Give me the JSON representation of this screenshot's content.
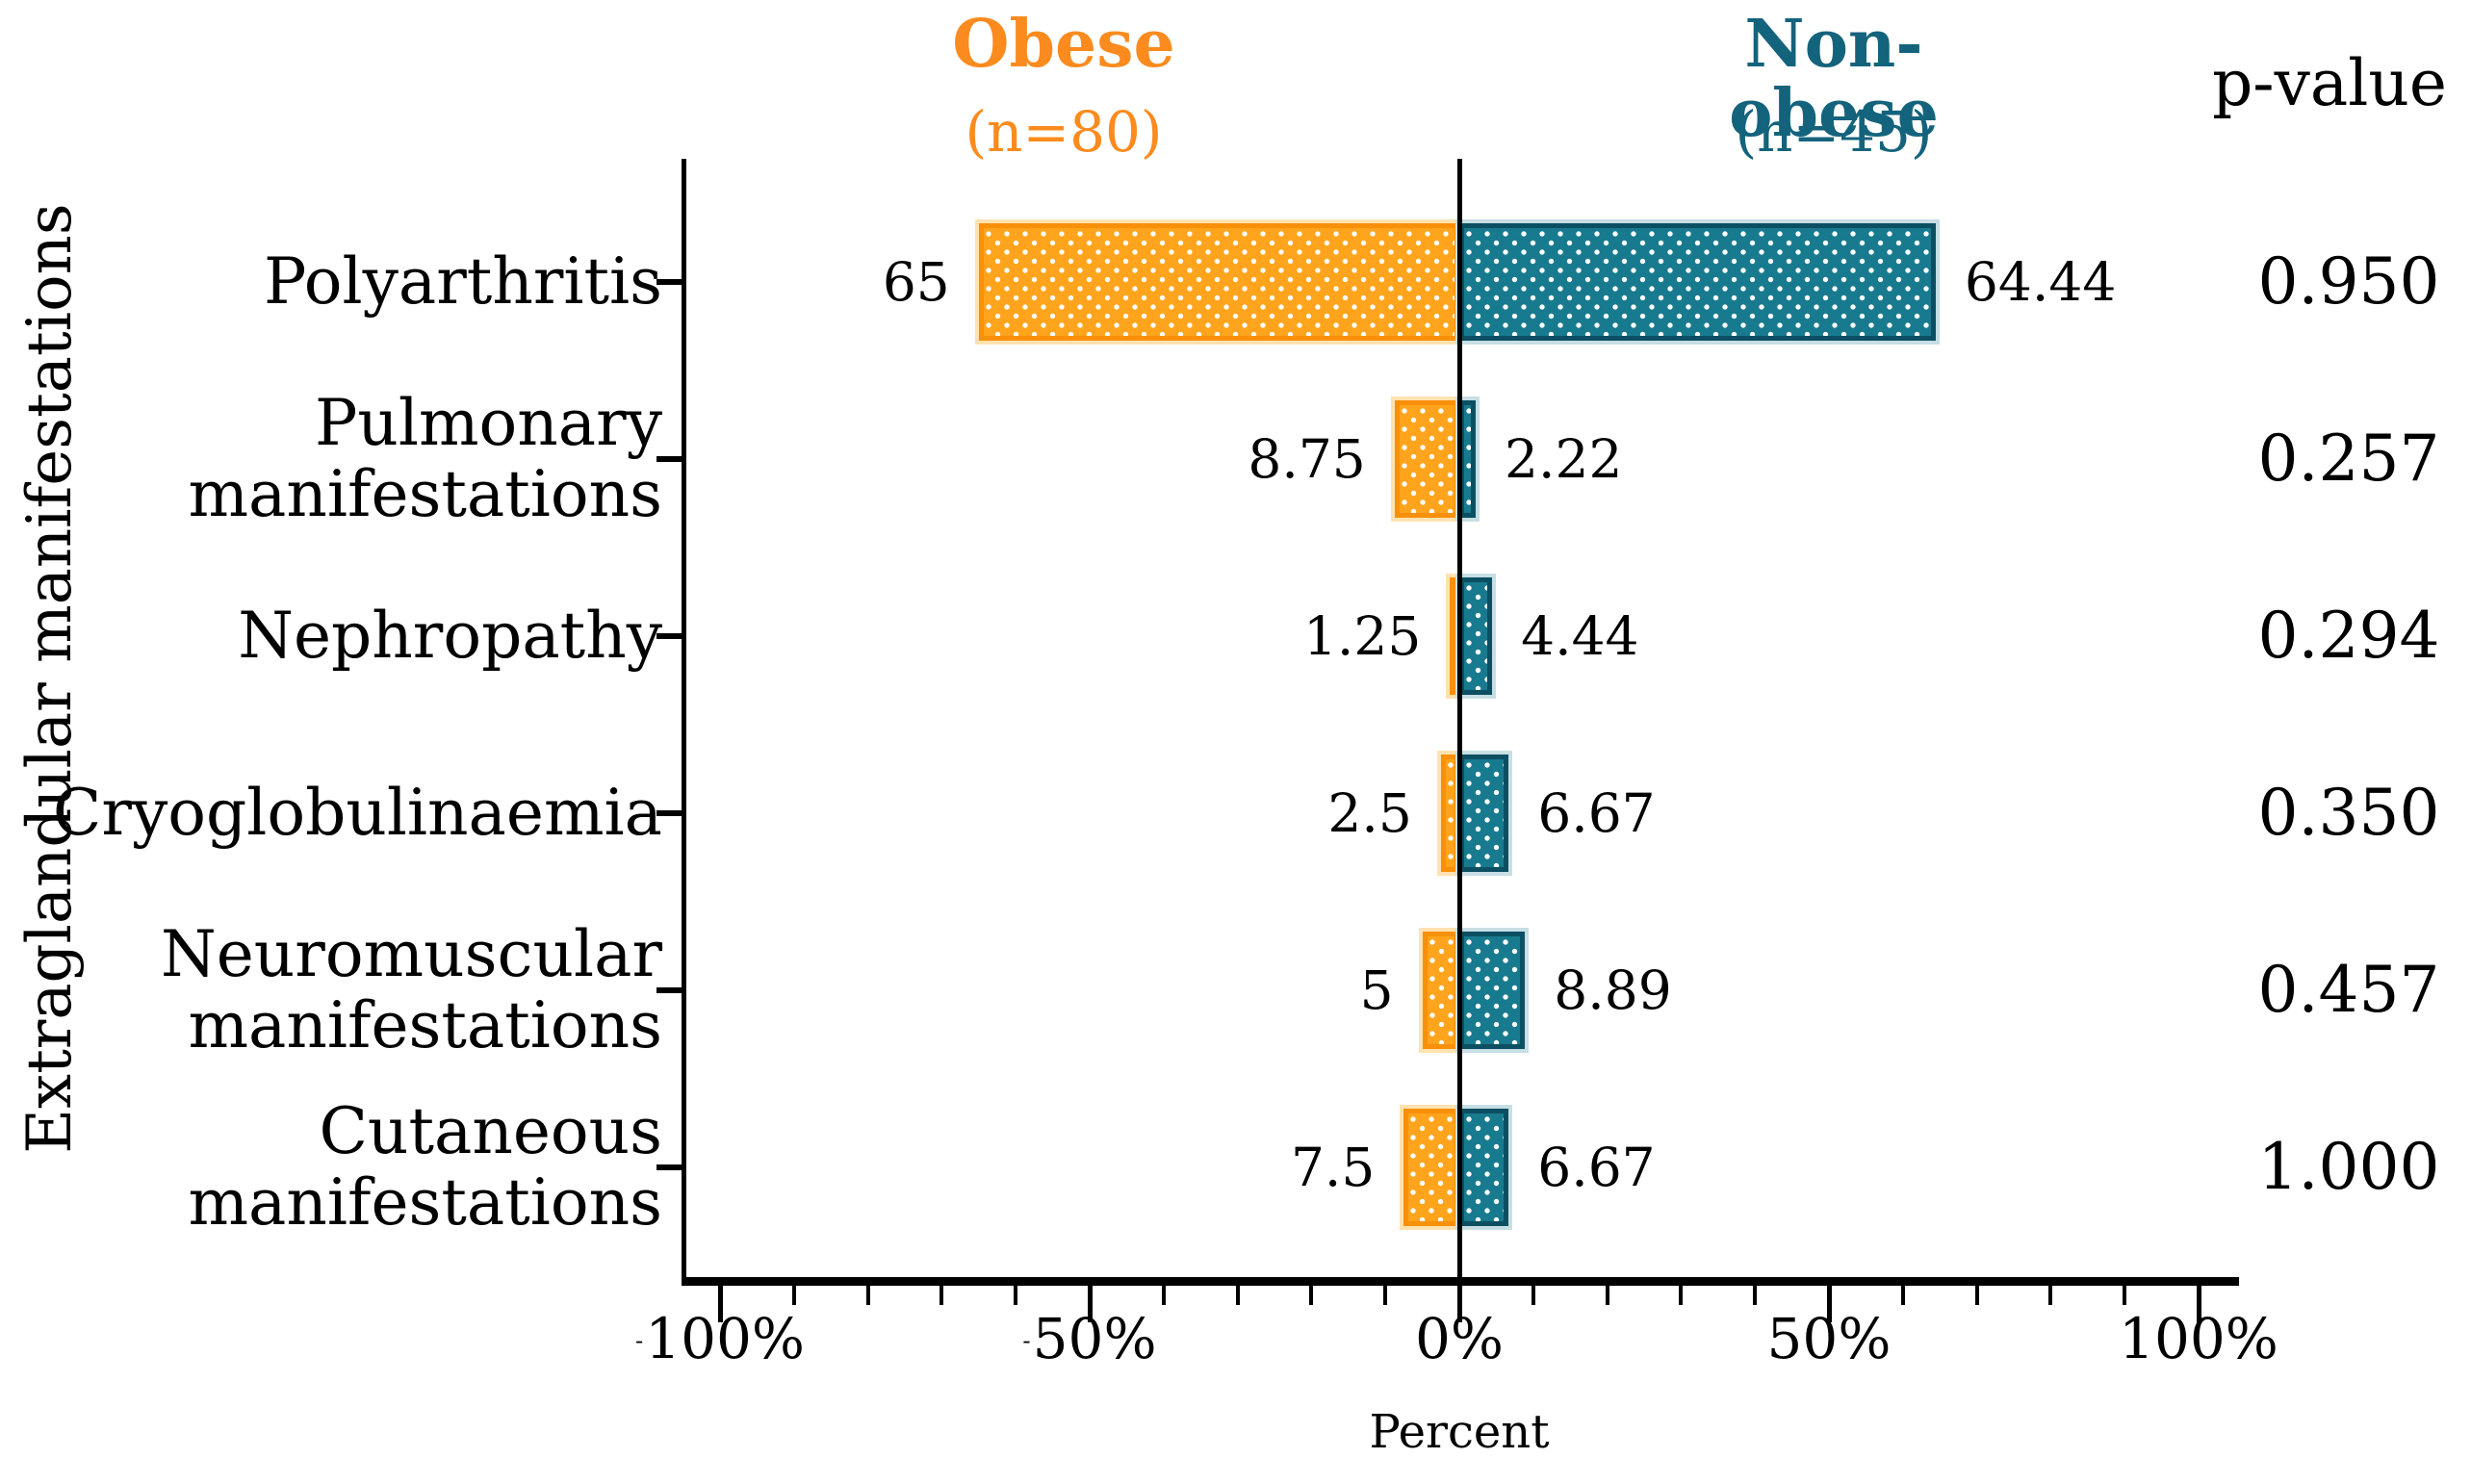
{
  "header": {
    "obese_label": "Obese",
    "obese_n": "(n=80)",
    "nonobese_label": "Non-obese",
    "nonobese_n": "(n=45)",
    "pvalue_label": "p-value"
  },
  "axes": {
    "xlabel": "Percent",
    "ylabel": "Extraglandular manifestations",
    "x_tick_labels": [
      "-100%",
      "-50%",
      "0%",
      "50%",
      "100%"
    ],
    "x_tick_values": [
      -100,
      -50,
      0,
      50,
      100
    ]
  },
  "colors": {
    "obese_fill": "#FFA41C",
    "obese_border": "#F8900A",
    "obese_halo": "#FFE2B0",
    "obese_text": "#FB8B1E",
    "nonobese_fill": "#187A8F",
    "nonobese_border": "#0C4F63",
    "nonobese_halo": "#C6DEE4",
    "nonobese_text": "#14637C",
    "axis": "#000000"
  },
  "chart_data": {
    "type": "bar",
    "variant": "diverging-butterfly",
    "title": "",
    "xlabel": "Percent",
    "ylabel": "Extraglandular manifestations",
    "xlim": [
      -105,
      105
    ],
    "x_ticks_pct": [
      -100,
      -50,
      0,
      50,
      100
    ],
    "minor_tick_step_pct": 10,
    "categories": [
      "Polyarthritis",
      "Pulmonary manifestations",
      "Nephropathy",
      "Cryoglobulinaemia",
      "Neuromuscular manifestations",
      "Cutaneous manifestations"
    ],
    "category_display_lines": [
      [
        "Polyarthritis"
      ],
      [
        "Pulmonary",
        "manifestations"
      ],
      [
        "Nephropathy"
      ],
      [
        "Cryoglobulinaemia"
      ],
      [
        "Neuromuscular",
        "manifestations"
      ],
      [
        "Cutaneous",
        "manifestations"
      ]
    ],
    "series": [
      {
        "name": "Obese",
        "n": 80,
        "side": "left",
        "values": [
          65,
          8.75,
          1.25,
          2.5,
          5,
          7.5
        ],
        "value_labels": [
          "65",
          "8.75",
          "1.25",
          "2.5",
          "5",
          "7.5"
        ]
      },
      {
        "name": "Non-obese",
        "n": 45,
        "side": "right",
        "values": [
          64.44,
          2.22,
          4.44,
          6.67,
          8.89,
          6.67
        ],
        "value_labels": [
          "64.44",
          "2.22",
          "4.44",
          "6.67",
          "8.89",
          "6.67"
        ]
      }
    ],
    "p_value_header": "p-value",
    "p_values": [
      "0.950",
      "0.257",
      "0.294",
      "0.350",
      "0.457",
      "1.000"
    ]
  }
}
